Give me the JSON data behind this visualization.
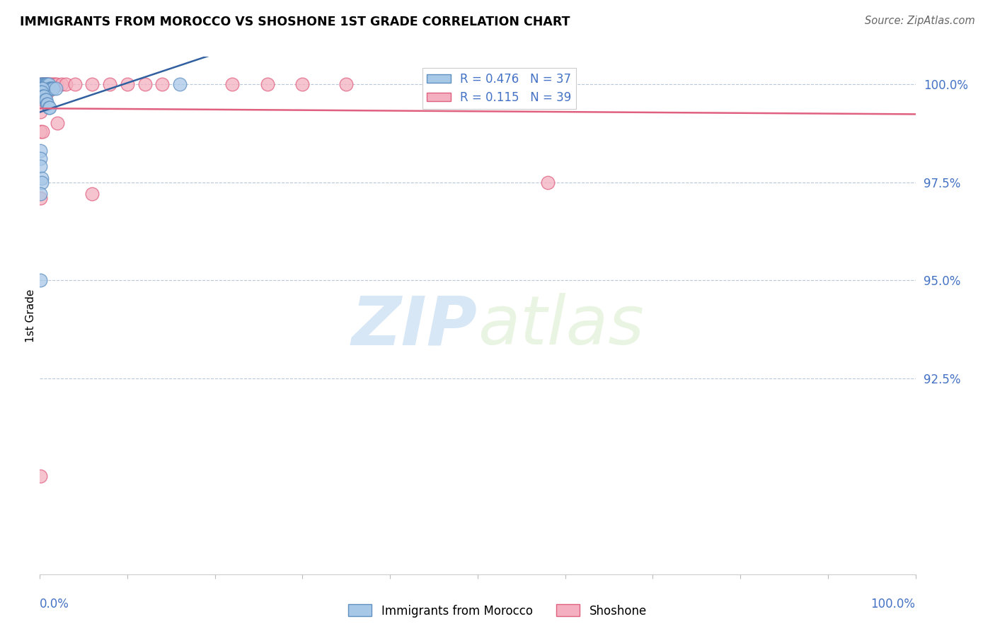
{
  "title": "IMMIGRANTS FROM MOROCCO VS SHOSHONE 1ST GRADE CORRELATION CHART",
  "source": "Source: ZipAtlas.com",
  "ylabel": "1st Grade",
  "ylabel_right_labels": [
    "100.0%",
    "97.5%",
    "95.0%",
    "92.5%"
  ],
  "ylabel_right_values": [
    1.0,
    0.975,
    0.95,
    0.925
  ],
  "legend_blue_R": "R = 0.476",
  "legend_blue_N": "N = 37",
  "legend_pink_R": "R = 0.115",
  "legend_pink_N": "N = 39",
  "watermark_zip": "ZIP",
  "watermark_atlas": "atlas",
  "blue_color": "#a8c8e8",
  "pink_color": "#f4b0c0",
  "blue_edge_color": "#6090c0",
  "pink_edge_color": "#e06080",
  "blue_line_color": "#3060a0",
  "pink_line_color": "#e06080",
  "blue_scatter": [
    [
      0.001,
      1.0
    ],
    [
      0.002,
      1.0
    ],
    [
      0.003,
      1.0
    ],
    [
      0.004,
      1.0
    ],
    [
      0.005,
      1.0
    ],
    [
      0.006,
      1.0
    ],
    [
      0.007,
      1.0
    ],
    [
      0.008,
      1.0
    ],
    [
      0.009,
      1.0
    ],
    [
      0.01,
      1.0
    ],
    [
      0.011,
      0.999
    ],
    [
      0.012,
      0.999
    ],
    [
      0.013,
      0.999
    ],
    [
      0.014,
      0.999
    ],
    [
      0.015,
      0.999
    ],
    [
      0.018,
      0.999
    ],
    [
      0.002,
      0.999
    ],
    [
      0.003,
      0.999
    ],
    [
      0.001,
      0.998
    ],
    [
      0.002,
      0.998
    ],
    [
      0.003,
      0.997
    ],
    [
      0.004,
      0.997
    ],
    [
      0.005,
      0.997
    ],
    [
      0.006,
      0.996
    ],
    [
      0.007,
      0.996
    ],
    [
      0.008,
      0.995
    ],
    [
      0.009,
      0.995
    ],
    [
      0.01,
      0.994
    ],
    [
      0.011,
      0.994
    ],
    [
      0.001,
      0.983
    ],
    [
      0.001,
      0.981
    ],
    [
      0.001,
      0.979
    ],
    [
      0.002,
      0.976
    ],
    [
      0.002,
      0.975
    ],
    [
      0.001,
      0.972
    ],
    [
      0.001,
      0.95
    ],
    [
      0.16,
      1.0
    ]
  ],
  "pink_scatter": [
    [
      0.001,
      1.0
    ],
    [
      0.003,
      1.0
    ],
    [
      0.005,
      1.0
    ],
    [
      0.007,
      1.0
    ],
    [
      0.009,
      1.0
    ],
    [
      0.011,
      1.0
    ],
    [
      0.013,
      1.0
    ],
    [
      0.015,
      1.0
    ],
    [
      0.017,
      1.0
    ],
    [
      0.019,
      1.0
    ],
    [
      0.025,
      1.0
    ],
    [
      0.03,
      1.0
    ],
    [
      0.04,
      1.0
    ],
    [
      0.06,
      1.0
    ],
    [
      0.08,
      1.0
    ],
    [
      0.1,
      1.0
    ],
    [
      0.12,
      1.0
    ],
    [
      0.14,
      1.0
    ],
    [
      0.22,
      1.0
    ],
    [
      0.26,
      1.0
    ],
    [
      0.3,
      1.0
    ],
    [
      0.35,
      1.0
    ],
    [
      0.001,
      0.999
    ],
    [
      0.003,
      0.999
    ],
    [
      0.005,
      0.999
    ],
    [
      0.007,
      0.998
    ],
    [
      0.009,
      0.998
    ],
    [
      0.001,
      0.997
    ],
    [
      0.003,
      0.997
    ],
    [
      0.001,
      0.996
    ],
    [
      0.003,
      0.996
    ],
    [
      0.001,
      0.993
    ],
    [
      0.02,
      0.99
    ],
    [
      0.001,
      0.988
    ],
    [
      0.003,
      0.988
    ],
    [
      0.58,
      0.975
    ],
    [
      0.06,
      0.972
    ],
    [
      0.001,
      0.971
    ],
    [
      0.001,
      0.9
    ]
  ],
  "xlim": [
    0.0,
    1.0
  ],
  "ylim": [
    0.875,
    1.007
  ]
}
